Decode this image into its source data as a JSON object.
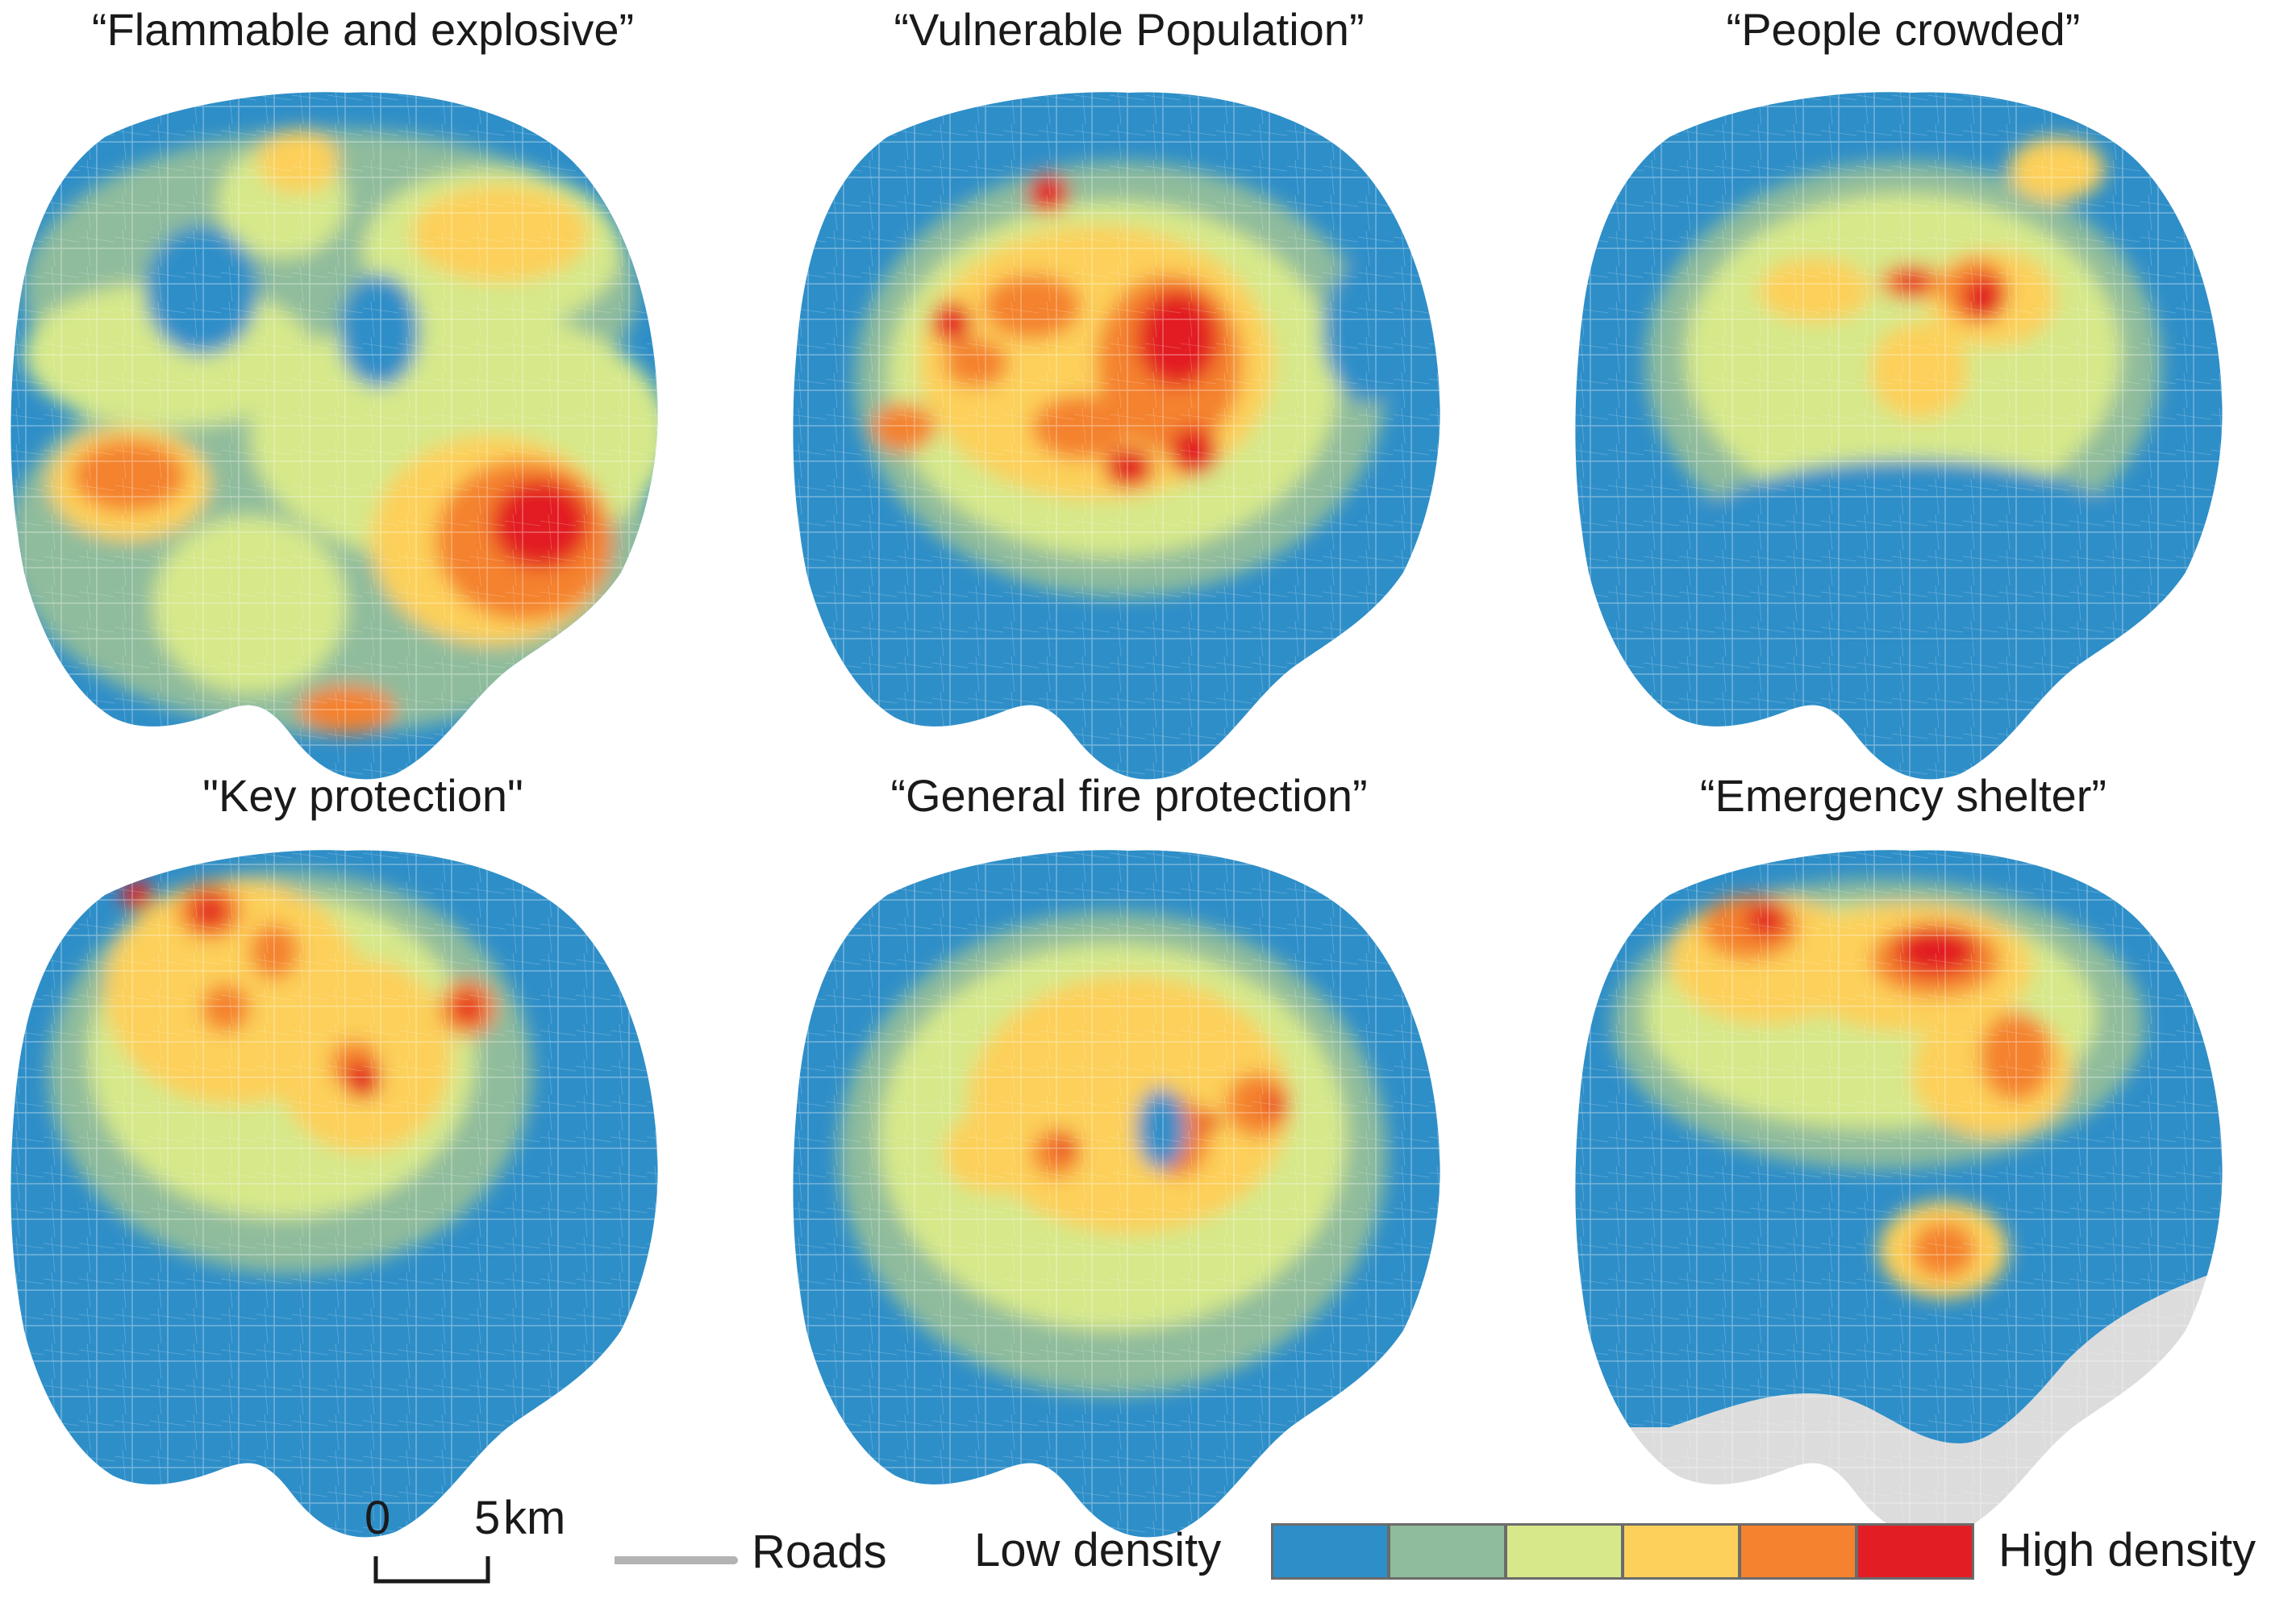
{
  "colors": {
    "level1": "#2e8ec8",
    "level2": "#8fbc9c",
    "level3": "#d6e88a",
    "level4": "#fcd05a",
    "level5": "#f4822e",
    "level6": "#e21e24",
    "roads": "#b3b3b3",
    "background_area": "#dcdcdc"
  },
  "panels": [
    {
      "id": "flammable",
      "title": "“Flammable and explosive”"
    },
    {
      "id": "vulnerable",
      "title": "“Vulnerable Population”"
    },
    {
      "id": "crowded",
      "title": "“People crowded”"
    },
    {
      "id": "key",
      "title": "\"Key protection\""
    },
    {
      "id": "general",
      "title": "“General fire protection”"
    },
    {
      "id": "shelter",
      "title": "“Emergency shelter”"
    }
  ],
  "scale_bar": {
    "start_label": "0",
    "end_label": "5",
    "unit": "km"
  },
  "legend": {
    "roads_label": "Roads",
    "low_label": "Low density",
    "high_label": "High density",
    "classes": [
      "level1",
      "level2",
      "level3",
      "level4",
      "level5",
      "level6"
    ]
  }
}
